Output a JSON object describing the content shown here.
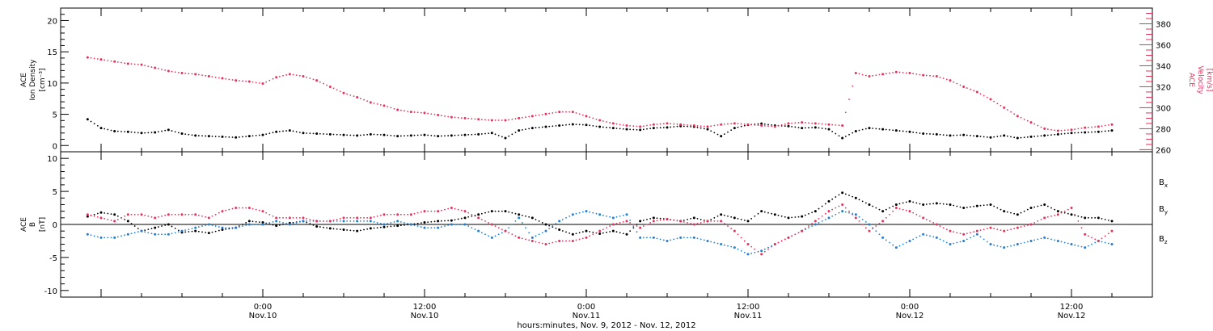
{
  "chart_data": [
    {
      "type": "scatter",
      "panel": "ion-density-velocity",
      "ylabel_lines": [
        "ACE",
        "Ion Density",
        "[cm⁻³]"
      ],
      "y2label_lines": [
        "ACE",
        "Velocity",
        "[km/s]"
      ],
      "ylim": [
        -1,
        22
      ],
      "y2lim": [
        258,
        395
      ],
      "yticks": [
        "0",
        "5",
        "10",
        "15",
        "20"
      ],
      "y2ticks": [
        "260",
        "280",
        "300",
        "320",
        "340",
        "360",
        "380"
      ],
      "grid": false,
      "series": [
        {
          "axis": "left",
          "color": "#000000",
          "x": [
            -13,
            -12,
            -11,
            -10,
            -9,
            -8,
            -7,
            -6,
            -5,
            -4,
            -3,
            -2,
            -1,
            0,
            1,
            2,
            3,
            4,
            5,
            6,
            7,
            8,
            9,
            10,
            11,
            12,
            13,
            14,
            15,
            16,
            17,
            18,
            19,
            20,
            21,
            22,
            23,
            24,
            25,
            26,
            27,
            28,
            29,
            30,
            31,
            32,
            33,
            34,
            35,
            36,
            37,
            38,
            39,
            40,
            41,
            42,
            43,
            44,
            45,
            46,
            47,
            48,
            49,
            50,
            51,
            52,
            53,
            54,
            55,
            56,
            57,
            58,
            59,
            60,
            61,
            62,
            63
          ],
          "y": [
            4.2,
            2.8,
            2.3,
            2.2,
            2.0,
            2.1,
            2.5,
            1.9,
            1.6,
            1.5,
            1.4,
            1.3,
            1.5,
            1.7,
            2.2,
            2.4,
            2.0,
            1.9,
            1.8,
            1.7,
            1.6,
            1.8,
            1.7,
            1.5,
            1.6,
            1.7,
            1.5,
            1.6,
            1.7,
            1.8,
            2.0,
            1.2,
            2.4,
            2.8,
            3.0,
            3.2,
            3.4,
            3.3,
            3.0,
            2.8,
            2.6,
            2.5,
            2.8,
            2.9,
            3.1,
            3.0,
            2.6,
            1.5,
            2.8,
            3.3,
            3.5,
            3.2,
            3.1,
            2.8,
            2.9,
            2.6,
            1.2,
            2.3,
            2.8,
            2.6,
            2.4,
            2.2,
            1.9,
            1.8,
            1.6,
            1.7,
            1.5,
            1.3,
            1.6,
            1.2,
            1.4,
            1.6,
            1.8,
            2.0,
            2.1,
            2.2,
            2.4
          ]
        },
        {
          "axis": "right",
          "color": "#e8305a",
          "x": [
            -13,
            -12,
            -11,
            -10,
            -9,
            -8,
            -7,
            -6,
            -5,
            -4,
            -3,
            -2,
            -1,
            0,
            1,
            2,
            3,
            4,
            5,
            6,
            7,
            8,
            9,
            10,
            11,
            12,
            13,
            14,
            15,
            16,
            17,
            18,
            19,
            20,
            21,
            22,
            23,
            24,
            25,
            26,
            27,
            28,
            29,
            30,
            31,
            32,
            33,
            34,
            35,
            36,
            37,
            38,
            39,
            40,
            41,
            42,
            43,
            44,
            45,
            46,
            47,
            48,
            49,
            50,
            51,
            52,
            53,
            54,
            55,
            56,
            57,
            58,
            59,
            60,
            61,
            62,
            63
          ],
          "y": [
            348,
            346,
            344,
            342,
            341,
            338,
            335,
            333,
            332,
            330,
            328,
            326,
            325,
            323,
            329,
            332,
            330,
            326,
            320,
            314,
            310,
            305,
            302,
            298,
            296,
            295,
            293,
            291,
            290,
            289,
            288,
            288,
            290,
            292,
            294,
            296,
            296,
            292,
            288,
            285,
            283,
            282,
            284,
            285,
            284,
            283,
            282,
            284,
            285,
            284,
            283,
            282,
            285,
            286,
            285,
            284,
            283,
            333,
            330,
            332,
            334,
            333,
            331,
            330,
            326,
            320,
            315,
            308,
            300,
            292,
            286,
            280,
            278,
            279,
            281,
            282,
            284
          ]
        }
      ]
    },
    {
      "type": "scatter",
      "panel": "magnetic-field",
      "ylabel_lines": [
        "ACE",
        "B",
        "[nT]"
      ],
      "ylim": [
        -11,
        11
      ],
      "yticks": [
        "-10",
        "-5",
        "0",
        "5",
        "10"
      ],
      "grid": false,
      "zero_line": true,
      "series": [
        {
          "name": "Bx",
          "legend": {
            "main": "B",
            "sub": "x"
          },
          "color": "#000000",
          "x": [
            -13,
            -12,
            -11,
            -10,
            -9,
            -8,
            -7,
            -6,
            -5,
            -4,
            -3,
            -2,
            -1,
            0,
            1,
            2,
            3,
            4,
            5,
            6,
            7,
            8,
            9,
            10,
            11,
            12,
            13,
            14,
            15,
            16,
            17,
            18,
            19,
            20,
            21,
            22,
            23,
            24,
            25,
            26,
            27,
            28,
            29,
            30,
            31,
            32,
            33,
            34,
            35,
            36,
            37,
            38,
            39,
            40,
            41,
            42,
            43,
            44,
            45,
            46,
            47,
            48,
            49,
            50,
            51,
            52,
            53,
            54,
            55,
            56,
            57,
            58,
            59,
            60,
            61,
            62,
            63
          ],
          "y": [
            1.2,
            1.8,
            1.5,
            0.5,
            -1.0,
            -0.5,
            0.0,
            -1.2,
            -1.0,
            -1.3,
            -0.8,
            -0.5,
            0.5,
            0.3,
            -0.2,
            0.2,
            0.5,
            -0.3,
            -0.6,
            -0.8,
            -1.0,
            -0.6,
            -0.4,
            -0.2,
            0.0,
            0.3,
            0.5,
            0.6,
            1.0,
            1.5,
            2.0,
            2.0,
            1.5,
            1.0,
            0.0,
            -0.8,
            -1.5,
            -1.0,
            -1.4,
            -1.0,
            -1.5,
            0.5,
            1.0,
            0.8,
            0.5,
            1.0,
            0.5,
            1.5,
            1.0,
            0.5,
            2.0,
            1.5,
            1.0,
            1.2,
            2.0,
            3.5,
            4.8,
            4.0,
            3.0,
            2.0,
            3.0,
            3.5,
            3.0,
            3.2,
            3.0,
            2.5,
            2.8,
            3.0,
            2.0,
            1.5,
            2.5,
            3.0,
            2.0,
            1.5,
            1.0,
            1.0,
            0.5
          ]
        },
        {
          "name": "By",
          "legend": {
            "main": "B",
            "sub": "y"
          },
          "color": "#1e7fd8",
          "x": [
            -13,
            -12,
            -11,
            -10,
            -9,
            -8,
            -7,
            -6,
            -5,
            -4,
            -3,
            -2,
            -1,
            0,
            1,
            2,
            3,
            4,
            5,
            6,
            7,
            8,
            9,
            10,
            11,
            12,
            13,
            14,
            15,
            16,
            17,
            18,
            19,
            20,
            21,
            22,
            23,
            24,
            25,
            26,
            27,
            28,
            29,
            30,
            31,
            32,
            33,
            34,
            35,
            36,
            37,
            38,
            39,
            40,
            41,
            42,
            43,
            44,
            45,
            46,
            47,
            48,
            49,
            50,
            51,
            52,
            53,
            54,
            55,
            56,
            57,
            58,
            59,
            60,
            61,
            62,
            63
          ],
          "y": [
            -1.5,
            -2.0,
            -2.0,
            -1.5,
            -1.0,
            -1.5,
            -1.5,
            -1.0,
            -0.5,
            0.0,
            -0.5,
            -0.5,
            0.0,
            0.0,
            0.5,
            0.0,
            0.5,
            0.5,
            0.5,
            0.5,
            0.5,
            0.5,
            0.0,
            0.5,
            0.0,
            -0.5,
            -0.5,
            0.0,
            0.0,
            -1.0,
            -2.0,
            -1.0,
            1.0,
            -2.0,
            -1.0,
            0.5,
            1.5,
            2.0,
            1.5,
            1.0,
            1.5,
            -2.0,
            -2.0,
            -2.5,
            -2.0,
            -2.0,
            -2.5,
            -3.0,
            -3.5,
            -4.5,
            -4.0,
            -3.0,
            -2.0,
            -1.0,
            0.0,
            1.0,
            2.0,
            1.5,
            0.0,
            -2.0,
            -3.5,
            -2.5,
            -1.5,
            -2.0,
            -3.0,
            -2.5,
            -1.5,
            -3.0,
            -3.5,
            -3.0,
            -2.5,
            -2.0,
            -2.5,
            -3.0,
            -3.5,
            -2.5,
            -3.0
          ]
        },
        {
          "name": "Bz",
          "legend": {
            "main": "B",
            "sub": "z"
          },
          "color": "#e8305a",
          "x": [
            -13,
            -12,
            -11,
            -10,
            -9,
            -8,
            -7,
            -6,
            -5,
            -4,
            -3,
            -2,
            -1,
            0,
            1,
            2,
            3,
            4,
            5,
            6,
            7,
            8,
            9,
            10,
            11,
            12,
            13,
            14,
            15,
            16,
            17,
            18,
            19,
            20,
            21,
            22,
            23,
            24,
            25,
            26,
            27,
            28,
            29,
            30,
            31,
            32,
            33,
            34,
            35,
            36,
            37,
            38,
            39,
            40,
            41,
            42,
            43,
            44,
            45,
            46,
            47,
            48,
            49,
            50,
            51,
            52,
            53,
            54,
            55,
            56,
            57,
            58,
            59,
            60,
            61,
            62,
            63
          ],
          "y": [
            1.5,
            1.0,
            0.5,
            1.5,
            1.5,
            1.0,
            1.5,
            1.5,
            1.5,
            1.0,
            2.0,
            2.5,
            2.5,
            2.0,
            1.0,
            1.0,
            1.0,
            0.5,
            0.5,
            1.0,
            1.0,
            1.0,
            1.5,
            1.5,
            1.5,
            2.0,
            2.0,
            2.5,
            2.0,
            1.0,
            0.0,
            -1.0,
            -2.0,
            -2.5,
            -3.0,
            -2.5,
            -2.5,
            -2.0,
            -1.0,
            0.0,
            0.5,
            -0.5,
            0.5,
            0.8,
            0.5,
            0.0,
            0.5,
            0.5,
            -1.0,
            -3.0,
            -4.5,
            -3.0,
            -2.0,
            -1.0,
            0.5,
            2.0,
            3.0,
            1.0,
            -1.0,
            0.5,
            2.5,
            2.0,
            1.0,
            0.0,
            -1.0,
            -1.5,
            -1.0,
            -0.5,
            -1.0,
            -0.5,
            0.0,
            1.0,
            1.5,
            2.5,
            -1.5,
            -2.5,
            -1.0
          ]
        }
      ]
    }
  ],
  "x_axis": {
    "ticks": [
      {
        "time": "0:00",
        "date": "Nov.10"
      },
      {
        "time": "12:00",
        "date": "Nov.10"
      },
      {
        "time": "0:00",
        "date": "Nov.11"
      },
      {
        "time": "12:00",
        "date": "Nov.11"
      },
      {
        "time": "0:00",
        "date": "Nov.12"
      },
      {
        "time": "12:00",
        "date": "Nov.12"
      }
    ],
    "title": "hours:minutes, Nov.  9, 2012 - Nov. 12, 2012"
  }
}
